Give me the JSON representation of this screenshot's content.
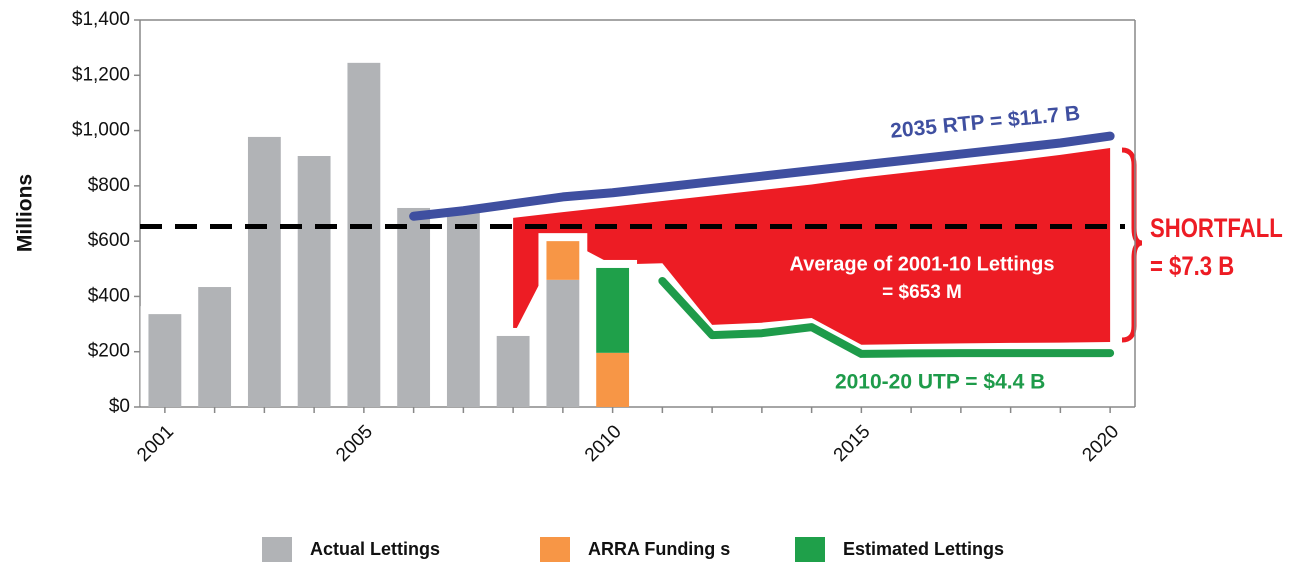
{
  "chart_data": {
    "type": "bar",
    "y_axis_label": "Millions",
    "categories": [
      "2001",
      null,
      null,
      null,
      "2005",
      null,
      null,
      null,
      null,
      "2010",
      null,
      null,
      null,
      null,
      "2015",
      null,
      null,
      null,
      null,
      "2020"
    ],
    "ylim": [
      0,
      1400
    ],
    "yticks": [
      {
        "value": 0,
        "label": "$0"
      },
      {
        "value": 200,
        "label": "$200"
      },
      {
        "value": 400,
        "label": "$400"
      },
      {
        "value": 600,
        "label": "$600"
      },
      {
        "value": 800,
        "label": "$800"
      },
      {
        "value": 1000,
        "label": "$1,000"
      },
      {
        "value": 1200,
        "label": "$1,200"
      },
      {
        "value": 1400,
        "label": "$1,400"
      }
    ],
    "series": [
      {
        "name": "Actual Lettings",
        "type": "bar",
        "color": "#b1b3b6",
        "values": [
          336,
          434,
          977,
          908,
          1245,
          720,
          702,
          257,
          460,
          null,
          null,
          null,
          null,
          null,
          null,
          null,
          null,
          null,
          null,
          null
        ]
      },
      {
        "name": "ARRA Funding s",
        "type": "bar",
        "color": "#f79646",
        "values": [
          null,
          null,
          null,
          null,
          null,
          null,
          null,
          null,
          140,
          196,
          null,
          null,
          null,
          null,
          null,
          null,
          null,
          null,
          null,
          null
        ]
      },
      {
        "name": "Estimated Lettings",
        "type": "bar",
        "color": "#1fa04a",
        "values": [
          null,
          null,
          null,
          null,
          null,
          null,
          null,
          null,
          null,
          307,
          null,
          null,
          null,
          null,
          null,
          null,
          null,
          null,
          null,
          null
        ]
      },
      {
        "name": "SHORTFALL",
        "type": "area",
        "color": "#ed1c24",
        "values": [
          null,
          null,
          null,
          null,
          null,
          null,
          null,
          684,
          705,
          725,
          745,
          765,
          785,
          805,
          830,
          850,
          870,
          890,
          912,
          937
        ],
        "lower": [
          null,
          null,
          null,
          null,
          null,
          null,
          null,
          260,
          610,
          515,
          520,
          297,
          305,
          322,
          225,
          228,
          230,
          232,
          233,
          235
        ]
      },
      {
        "name": "2035 RTP = $11.7 B",
        "type": "line",
        "color": "#3f4fa0",
        "values": [
          null,
          null,
          null,
          null,
          null,
          690,
          710,
          735,
          760,
          775,
          795,
          815,
          835,
          855,
          875,
          895,
          915,
          935,
          955,
          980
        ]
      },
      {
        "name": "2010-20 UTP = $4.4 B",
        "type": "line",
        "color": "#1e9b4a",
        "values": [
          null,
          null,
          null,
          null,
          null,
          null,
          null,
          null,
          null,
          null,
          456,
          260,
          267,
          289,
          192,
          194,
          195,
          195,
          195,
          195
        ]
      }
    ],
    "legend": [
      "Actual Lettings",
      "ARRA Funding s",
      "Estimated Lettings"
    ],
    "average_line": 653,
    "average_label": [
      "Average of 2001-10  Lettings",
      "= $653 M"
    ],
    "shortfall_value": "= $7.3 B"
  }
}
